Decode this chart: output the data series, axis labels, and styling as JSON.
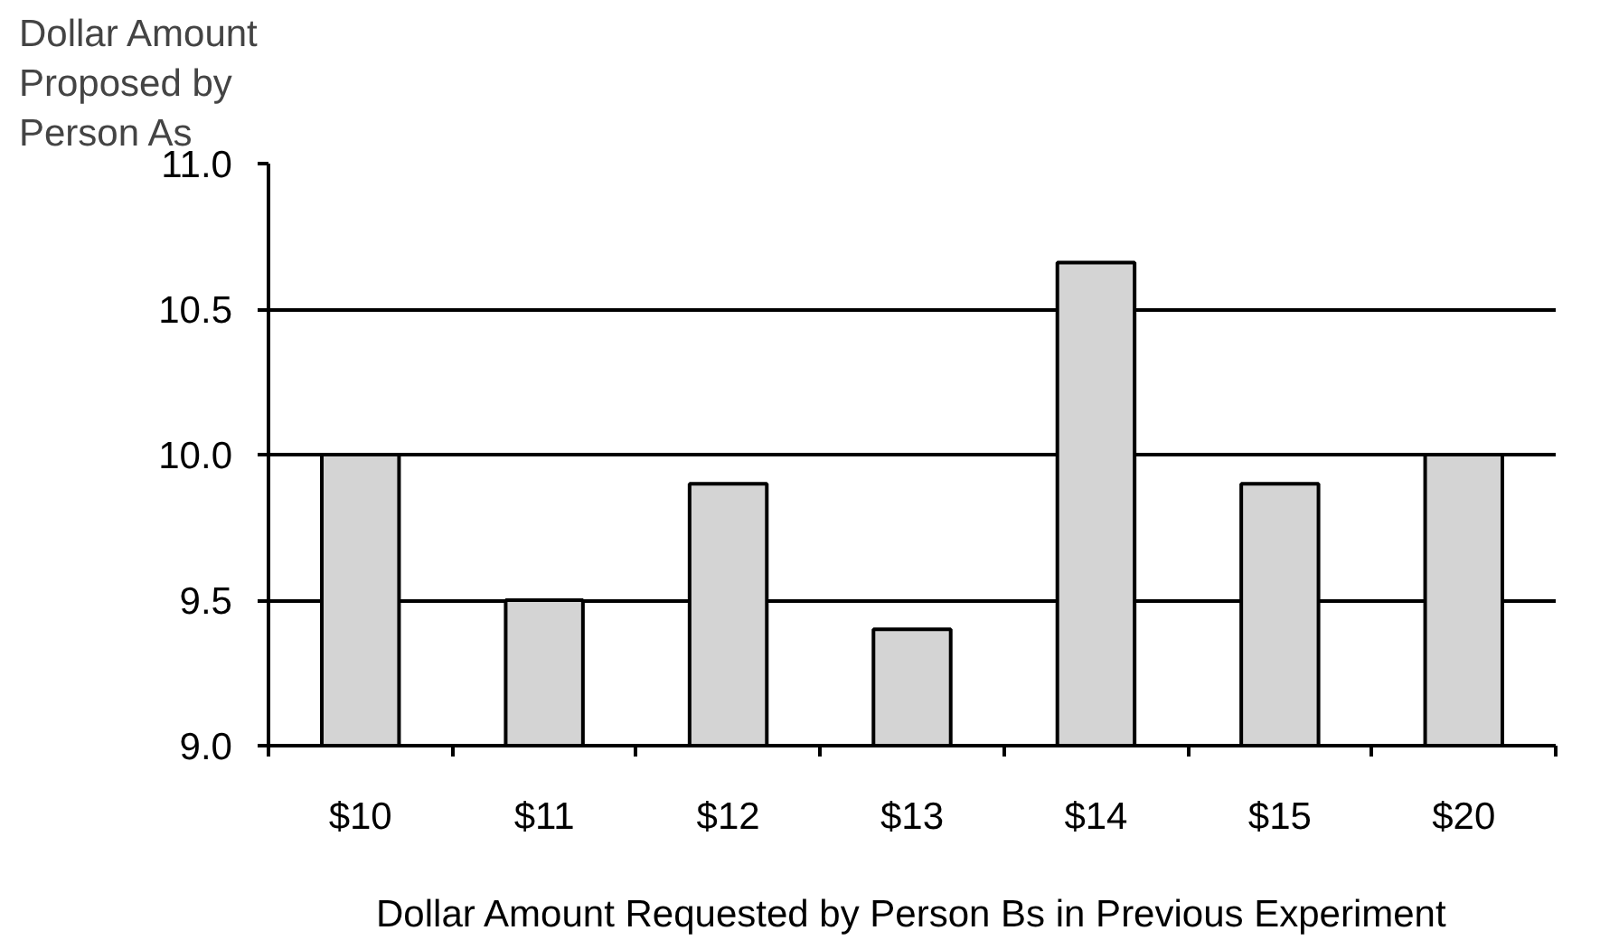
{
  "chart_data": {
    "type": "bar",
    "ylabel": "Dollar Amount Proposed by Person As",
    "xlabel": "Dollar Amount Requested by Person Bs in Previous Experiment",
    "categories": [
      "$10",
      "$11",
      "$12",
      "$13",
      "$14",
      "$15",
      "$20"
    ],
    "values": [
      10.0,
      9.5,
      9.9,
      9.4,
      10.66,
      9.9,
      10.0
    ],
    "color": "#d4d4d4",
    "ylim": [
      9.0,
      11.0
    ],
    "yticks": [
      {
        "value": 9,
        "label": "9.0"
      },
      9.5,
      {
        "value": 10,
        "label": "10.0"
      },
      10.5,
      {
        "value": 11,
        "label": "11.0"
      }
    ],
    "grid": "y"
  }
}
